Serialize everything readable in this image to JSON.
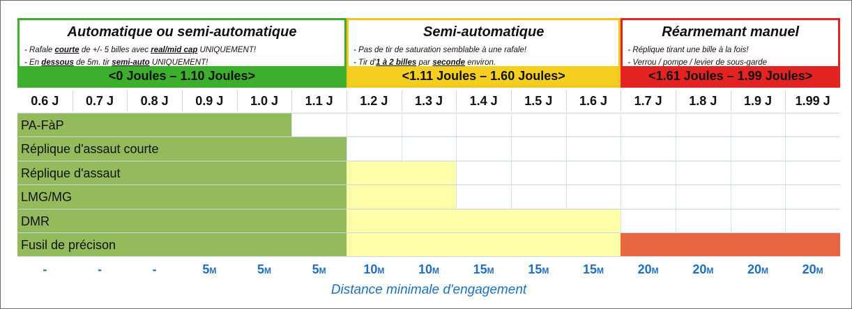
{
  "sections": [
    {
      "title": "Automatique ou semi-automatique",
      "line1": [
        "- Rafale ",
        "courte",
        " de +/- 5  billes avec ",
        "real/mid cap",
        " UNIQUEMENT!"
      ],
      "line2": [
        "- En ",
        "dessous",
        " de 5m. tir ",
        "semi-auto",
        " UNIQUEMENT!"
      ],
      "range": "<0 Joules – 1.10 Joules>",
      "colors": {
        "border": "#3caf2d",
        "band": "#3caf2d"
      }
    },
    {
      "title": "Semi-automatique",
      "line1": [
        "- Pas de tir de saturation semblable à une rafale!"
      ],
      "line2": [
        "- Tir d'",
        "1  à  2 billes",
        " par ",
        "seconde",
        " environ."
      ],
      "range": "<1.11 Joules – 1.60 Joules>",
      "colors": {
        "border": "#f2c521",
        "band": "#f5cf1f"
      }
    },
    {
      "title": "Réarmemant manuel",
      "line1": [
        "- Réplique tirant une bille à la fois!"
      ],
      "line2": [
        "- Verrou / pompe / levier de sous-garde"
      ],
      "range": "<1.61 Joules – 1.99 Joules>",
      "colors": {
        "border": "#e32222",
        "band": "#e32222"
      }
    }
  ],
  "joules": [
    "0.6 J",
    "0.7 J",
    "0.8 J",
    "0.9 J",
    "1.0 J",
    "1.1 J",
    "1.2 J",
    "1.3 J",
    "1.4 J",
    "1.5 J",
    "1.6 J",
    "1.7 J",
    "1.8 J",
    "1.9 J",
    "1.99 J"
  ],
  "rows": [
    {
      "label": "PA-FàP",
      "green_cols": 5,
      "yellow_cols": 0,
      "red_cols": 0
    },
    {
      "label": "Réplique d'assaut courte",
      "green_cols": 6,
      "yellow_cols": 0,
      "red_cols": 0
    },
    {
      "label": "Réplique d'assaut",
      "green_cols": 6,
      "yellow_cols": 2,
      "red_cols": 0
    },
    {
      "label": "LMG/MG",
      "green_cols": 6,
      "yellow_cols": 2,
      "red_cols": 0
    },
    {
      "label": "DMR",
      "green_cols": 6,
      "yellow_cols": 5,
      "red_cols": 0
    },
    {
      "label": "Fusil de précison",
      "green_cols": 6,
      "yellow_cols": 5,
      "red_cols": 4
    }
  ],
  "distances": [
    {
      "n": "-",
      "u": ""
    },
    {
      "n": "-",
      "u": ""
    },
    {
      "n": "-",
      "u": ""
    },
    {
      "n": "5",
      "u": "M"
    },
    {
      "n": "5",
      "u": "M"
    },
    {
      "n": "5",
      "u": "M"
    },
    {
      "n": "10",
      "u": "M"
    },
    {
      "n": "10",
      "u": "M"
    },
    {
      "n": "15",
      "u": "M"
    },
    {
      "n": "15",
      "u": "M"
    },
    {
      "n": "15",
      "u": "M"
    },
    {
      "n": "20",
      "u": "M"
    },
    {
      "n": "20",
      "u": "M"
    },
    {
      "n": "20",
      "u": "M"
    },
    {
      "n": "20",
      "u": "M"
    }
  ],
  "caption": "Distance minimale d'engagement",
  "fill_colors": {
    "green": "#93bb5b",
    "yellow": "#fefda8",
    "red": "#e8663f"
  }
}
